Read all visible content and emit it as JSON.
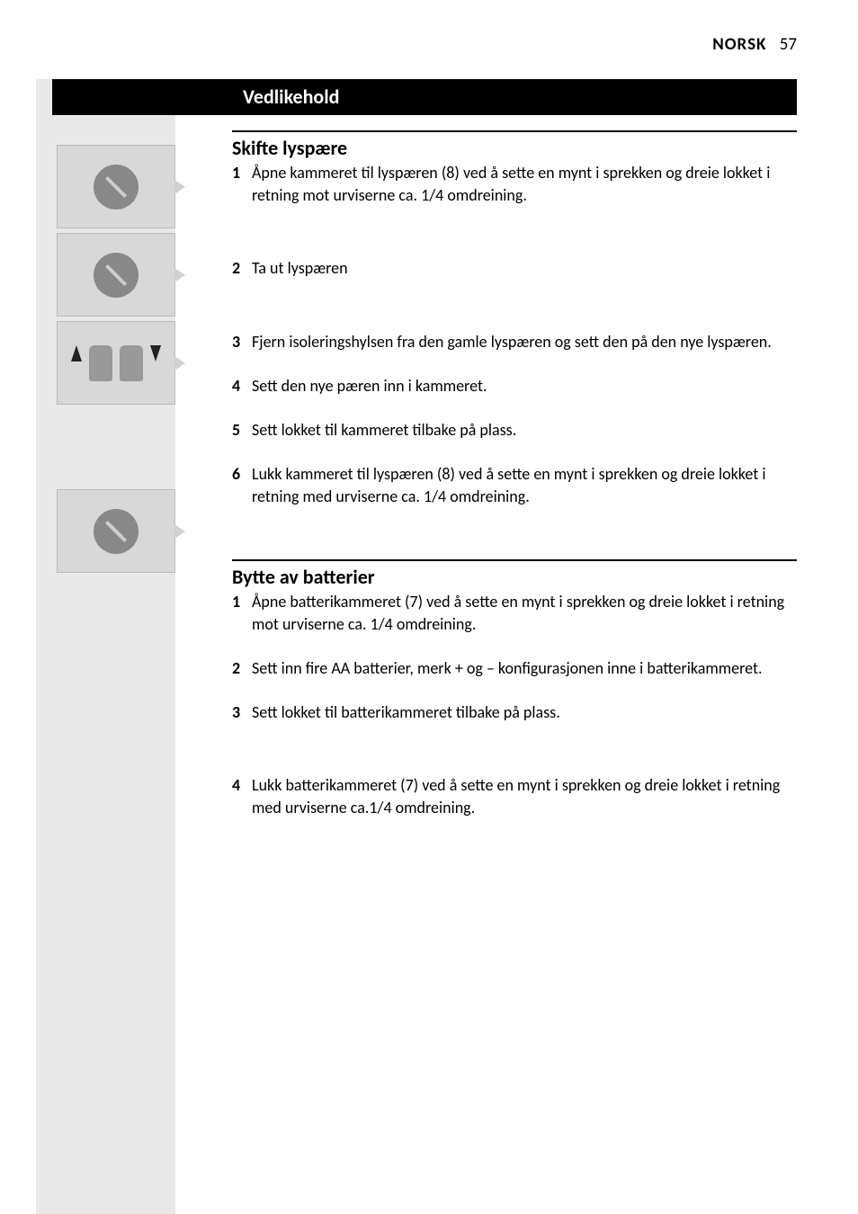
{
  "header": {
    "language": "NORSK",
    "page_number": "57"
  },
  "section_title": "Vedlikehold",
  "subsection1": {
    "title": "Skifte lyspære",
    "steps": [
      {
        "num": "1",
        "text": "Åpne kammeret til lyspæren (8) ved å sette en mynt i sprekken og dreie lokket i retning mot urviserne ca. 1/4 omdreining."
      },
      {
        "num": "2",
        "text": "Ta ut lyspæren"
      },
      {
        "num": "3",
        "text": "Fjern isoleringshylsen fra den gamle lyspæren og sett den på den nye lyspæren."
      },
      {
        "num": "4",
        "text": "Sett den nye pæren inn i kammeret."
      },
      {
        "num": "5",
        "text": "Sett lokket til kammeret tilbake på plass."
      },
      {
        "num": "6",
        "text": "Lukk kammeret til lyspæren (8) ved å sette en mynt i sprekken og dreie lokket i retning med urviserne ca. 1/4 omdreining."
      }
    ]
  },
  "subsection2": {
    "title": "Bytte av batterier",
    "steps": [
      {
        "num": "1",
        "text": "Åpne batterikammeret (7) ved å sette en mynt i sprekken og dreie lokket i retning mot urviserne ca. 1/4 omdreining."
      },
      {
        "num": "2",
        "text": "Sett inn fire AA batterier, merk + og – konfigurasjonen inne i batterikammeret."
      },
      {
        "num": "3",
        "text": "Sett lokket til batterikammeret tilbake på plass."
      },
      {
        "num": "4",
        "text": "Lukk batterikammeret (7) ved å sette en mynt i sprekken og dreie lokket i retning med urviserne ca.1/4 omdreining."
      }
    ]
  },
  "colors": {
    "background": "#ffffff",
    "sidebar": "#e8e8e8",
    "black": "#000000",
    "image_bg": "#d8d8d8"
  }
}
